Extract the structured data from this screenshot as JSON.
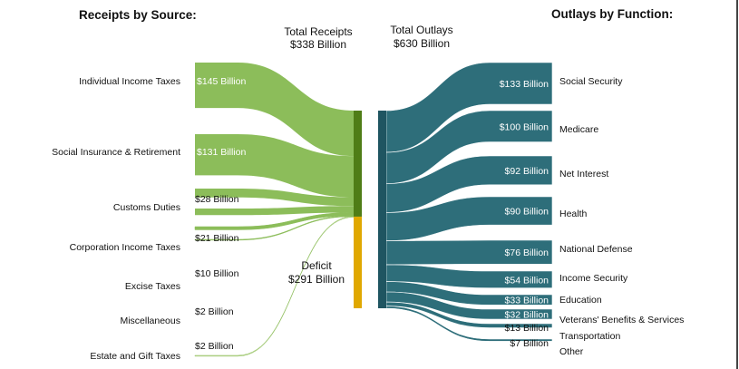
{
  "headings": {
    "receipts": "Receipts by Source:",
    "outlays": "Outlays by Function:"
  },
  "totals": {
    "receipts_label": "Total Receipts",
    "receipts_value": "$338 Billion",
    "outlays_label": "Total Outlays",
    "outlays_value": "$630 Billion"
  },
  "deficit": {
    "label": "Deficit",
    "value": "$291 Billion"
  },
  "colors": {
    "receipts_flow": "#8cbd5a",
    "receipts_bar": "#4f7d17",
    "deficit_bar": "#e0a800",
    "outlays_flow": "#2e6e7a",
    "outlays_bar": "#1f5561"
  },
  "chart_data": {
    "type": "sankey",
    "units": "Billion",
    "receipts": [
      {
        "name": "Individual Income Taxes",
        "value": 145,
        "value_label": "$145 Billion"
      },
      {
        "name": "Social Insurance & Retirement",
        "value": 131,
        "value_label": "$131 Billion"
      },
      {
        "name": "Customs Duties",
        "value": 28,
        "value_label": "$28 Billion"
      },
      {
        "name": "Corporation Income Taxes",
        "value": 21,
        "value_label": "$21 Billion"
      },
      {
        "name": "Excise Taxes",
        "value": 10,
        "value_label": "$10 Billion"
      },
      {
        "name": "Miscellaneous",
        "value": 2,
        "value_label": "$2 Billion"
      },
      {
        "name": "Estate and Gift Taxes",
        "value": 2,
        "value_label": "$2 Billion"
      }
    ],
    "outlays": [
      {
        "name": "Social Security",
        "value": 133,
        "value_label": "$133 Billion"
      },
      {
        "name": "Medicare",
        "value": 100,
        "value_label": "$100 Billion"
      },
      {
        "name": "Net Interest",
        "value": 92,
        "value_label": "$92 Billion"
      },
      {
        "name": "Health",
        "value": 90,
        "value_label": "$90 Billion"
      },
      {
        "name": "National Defense",
        "value": 76,
        "value_label": "$76 Billion"
      },
      {
        "name": "Income Security",
        "value": 54,
        "value_label": "$54 Billion"
      },
      {
        "name": "Education",
        "value": 33,
        "value_label": "$33 Billion"
      },
      {
        "name": "Veterans' Benefits & Services",
        "value": 32,
        "value_label": "$32 Billion"
      },
      {
        "name": "Transportation",
        "value": 13,
        "value_label": "$13 Billion"
      },
      {
        "name": "Other",
        "value": 7,
        "value_label": "$7 Billion"
      }
    ],
    "total_receipts": 338,
    "total_outlays": 630,
    "deficit": 291
  }
}
